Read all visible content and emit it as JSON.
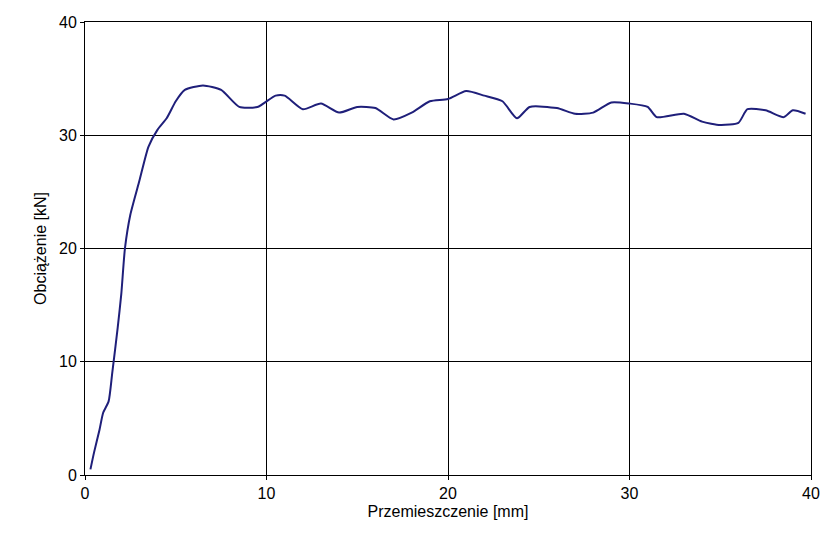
{
  "chart_data": {
    "type": "line",
    "x_label": "Przemieszczenie [mm]",
    "y_label": "Obciążenie [kN]",
    "x": [
      0.3,
      0.5,
      0.8,
      1.0,
      1.3,
      1.5,
      1.8,
      2.0,
      2.2,
      2.5,
      3.0,
      3.5,
      4.0,
      4.5,
      5.0,
      5.5,
      6.5,
      7.5,
      8.5,
      9.5,
      10.5,
      11.0,
      12.0,
      13.0,
      14.0,
      15.0,
      16.0,
      17.0,
      18.0,
      19.0,
      20.0,
      21.0,
      22.0,
      23.0,
      23.8,
      24.5,
      26.0,
      27.0,
      28.0,
      29.0,
      30.0,
      31.0,
      31.5,
      33.0,
      34.0,
      35.0,
      36.0,
      36.5,
      37.5,
      38.5,
      39.0,
      39.7
    ],
    "series": [
      {
        "name": "Obciążenie",
        "color": "#1f1f7a",
        "values": [
          0.5,
          2,
          4,
          5.5,
          6.5,
          9,
          13,
          16,
          20,
          23,
          26,
          29,
          30.5,
          31.5,
          33,
          34,
          34.4,
          34,
          32.5,
          32.5,
          33.5,
          33.5,
          32.3,
          32.8,
          32,
          32.5,
          32.4,
          31.4,
          32,
          33,
          33.2,
          33.9,
          33.5,
          33,
          31.5,
          32.5,
          32.4,
          31.9,
          32,
          32.9,
          32.8,
          32.5,
          31.6,
          31.9,
          31.2,
          30.9,
          31.1,
          32.3,
          32.2,
          31.6,
          32.2,
          31.9
        ]
      }
    ],
    "xlim": [
      0,
      40
    ],
    "xticks": [
      0,
      10,
      20,
      30,
      40
    ],
    "ylim": [
      0,
      40
    ],
    "yticks": [
      0,
      10,
      20,
      30,
      40
    ],
    "grid": true
  }
}
